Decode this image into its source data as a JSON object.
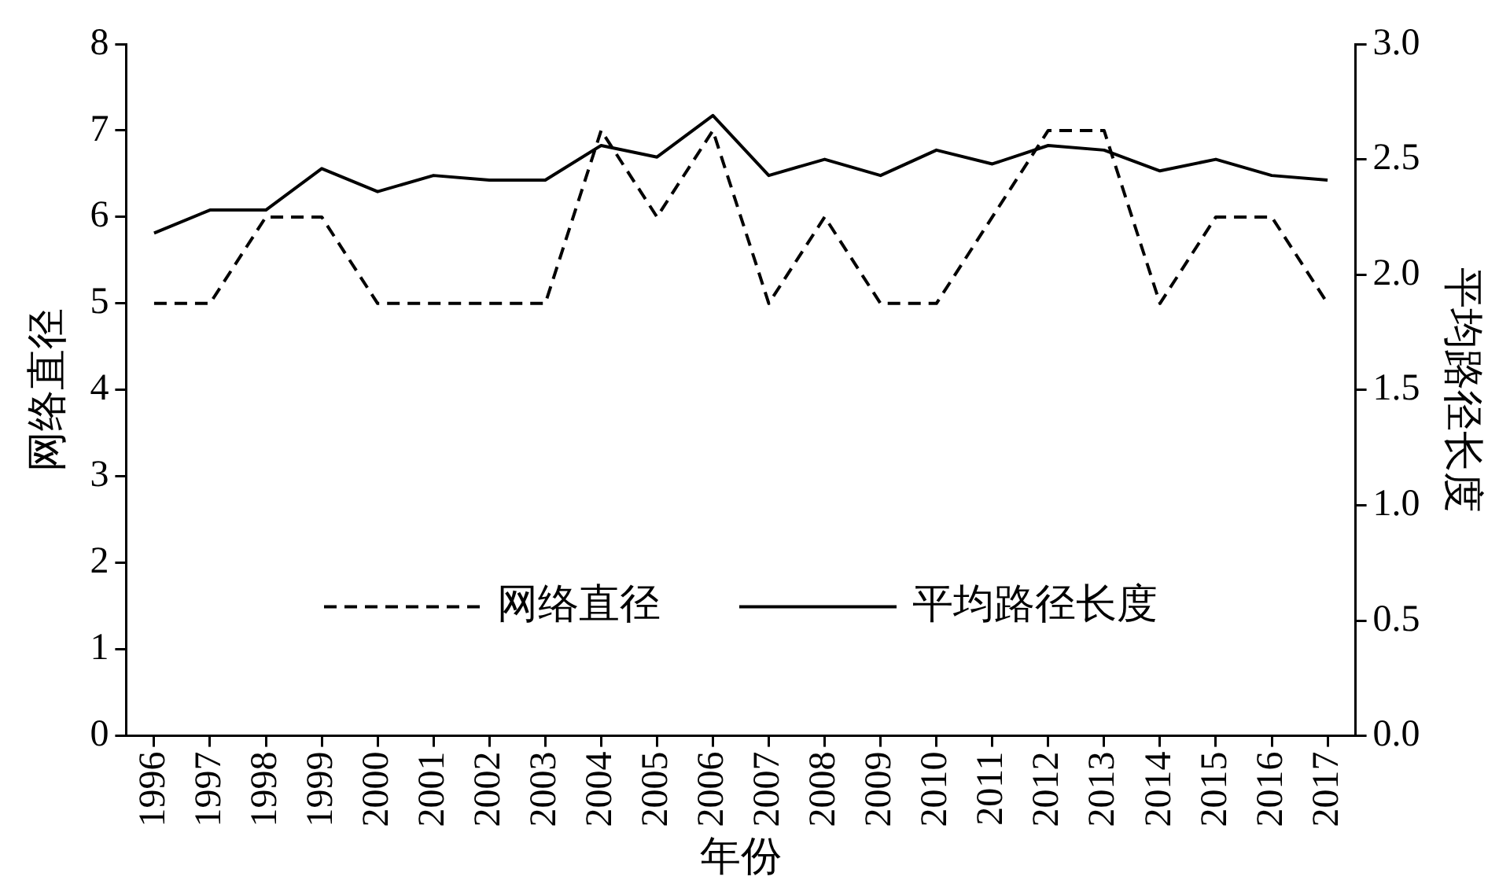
{
  "chart_data": {
    "type": "line",
    "xlabel": "年份",
    "ylabel": "网络直径",
    "y2label": "平均路径长度",
    "categories": [
      "1996",
      "1997",
      "1998",
      "1999",
      "2000",
      "2001",
      "2002",
      "2003",
      "2004",
      "2005",
      "2006",
      "2007",
      "2008",
      "2009",
      "2010",
      "2011",
      "2012",
      "2013",
      "2014",
      "2015",
      "2016",
      "2017"
    ],
    "series": [
      {
        "name": "网络直径",
        "color": "#000000",
        "line_style": "dashed",
        "axis": "y",
        "values": [
          5,
          5,
          6,
          6,
          5,
          5,
          5,
          5,
          7,
          6,
          7,
          5,
          6,
          5,
          5,
          6,
          7,
          7,
          5,
          6,
          6,
          5
        ]
      },
      {
        "name": "平均路径长度",
        "color": "#000000",
        "line_style": "solid",
        "axis": "y2",
        "values": [
          2.18,
          2.28,
          2.28,
          2.46,
          2.36,
          2.43,
          2.41,
          2.41,
          2.56,
          2.51,
          2.69,
          2.43,
          2.5,
          2.43,
          2.54,
          2.48,
          2.56,
          2.54,
          2.45,
          2.5,
          2.43,
          2.41
        ]
      }
    ],
    "ylim": [
      0,
      8
    ],
    "yticks": [
      0,
      1,
      2,
      3,
      4,
      5,
      6,
      7,
      8
    ],
    "y2lim": [
      0,
      3
    ],
    "y2ticks": [
      {
        "value": 0,
        "label": "0.0"
      },
      {
        "value": 0.5,
        "label": "0.5"
      },
      {
        "value": 1,
        "label": "1.0"
      },
      {
        "value": 1.5,
        "label": "1.5"
      },
      {
        "value": 2,
        "label": "2.0"
      },
      {
        "value": 2.5,
        "label": "2.5"
      },
      {
        "value": 3,
        "label": "3.0"
      }
    ],
    "grid": false,
    "legend": "bottom",
    "marker": "none"
  }
}
